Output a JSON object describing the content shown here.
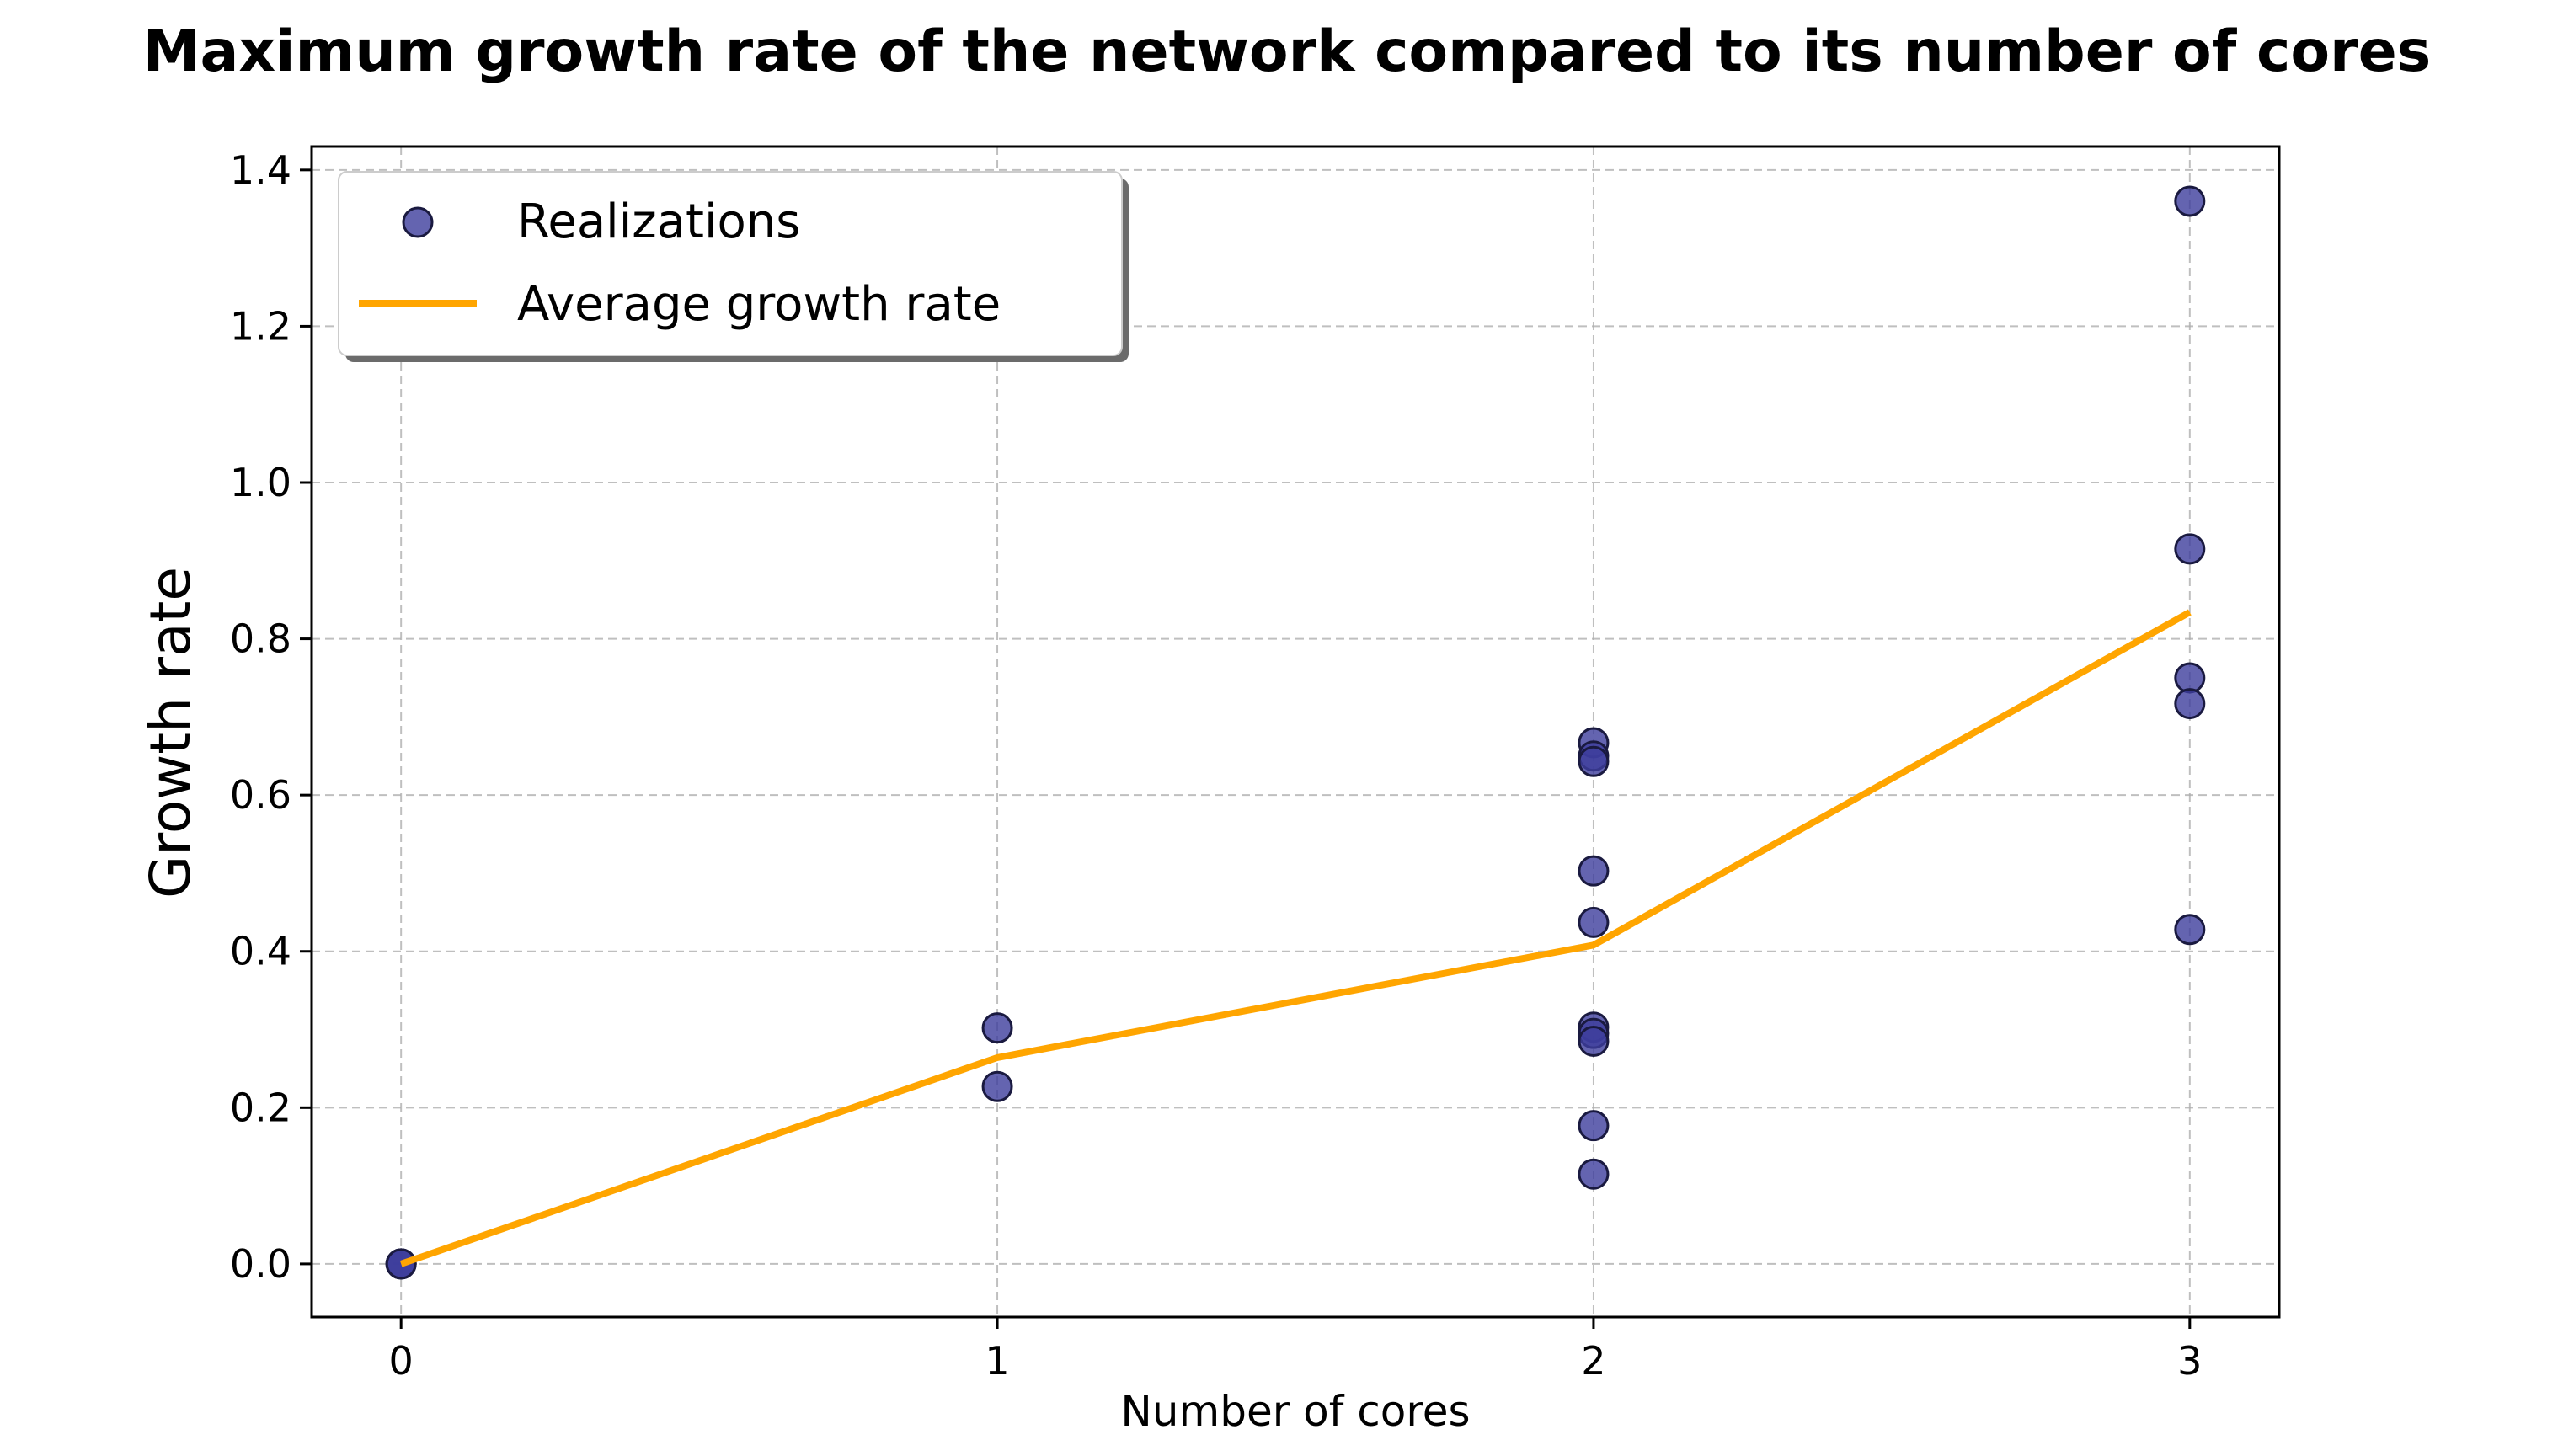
{
  "chart_data": {
    "type": "scatter",
    "title": "Maximum growth rate of the network compared to its number of cores",
    "xlabel": "Number of cores",
    "ylabel": "Growth rate",
    "xlim": [
      -0.15,
      3.15
    ],
    "ylim": [
      -0.068,
      1.43
    ],
    "x_ticks": [
      0,
      1,
      2,
      3
    ],
    "x_tick_labels": [
      "0",
      "1",
      "2",
      "3"
    ],
    "y_ticks": [
      0.0,
      0.2,
      0.4,
      0.6,
      0.8,
      1.0,
      1.2,
      1.4
    ],
    "y_tick_labels": [
      "0.0",
      "0.2",
      "0.4",
      "0.6",
      "0.8",
      "1.0",
      "1.2",
      "1.4"
    ],
    "grid": true,
    "legend_position": "top-left",
    "series": [
      {
        "name": "Realizations",
        "kind": "scatter",
        "color": "#3d3d9c",
        "edge_color": "#1a1a40",
        "points": [
          {
            "x": 0,
            "y": 0.0
          },
          {
            "x": 0,
            "y": 0.0
          },
          {
            "x": 0,
            "y": 0.0
          },
          {
            "x": 1,
            "y": 0.302
          },
          {
            "x": 1,
            "y": 0.227
          },
          {
            "x": 2,
            "y": 0.667
          },
          {
            "x": 2,
            "y": 0.65
          },
          {
            "x": 2,
            "y": 0.643
          },
          {
            "x": 2,
            "y": 0.503
          },
          {
            "x": 2,
            "y": 0.437
          },
          {
            "x": 2,
            "y": 0.303
          },
          {
            "x": 2,
            "y": 0.295
          },
          {
            "x": 2,
            "y": 0.285
          },
          {
            "x": 2,
            "y": 0.177
          },
          {
            "x": 2,
            "y": 0.115
          },
          {
            "x": 3,
            "y": 1.36
          },
          {
            "x": 3,
            "y": 0.915
          },
          {
            "x": 3,
            "y": 0.75
          },
          {
            "x": 3,
            "y": 0.717
          },
          {
            "x": 3,
            "y": 0.428
          }
        ]
      },
      {
        "name": "Average growth rate",
        "kind": "line",
        "color": "#ffa500",
        "points": [
          {
            "x": 0,
            "y": 0.0
          },
          {
            "x": 1,
            "y": 0.264
          },
          {
            "x": 2,
            "y": 0.408
          },
          {
            "x": 3,
            "y": 0.834
          }
        ]
      }
    ]
  }
}
